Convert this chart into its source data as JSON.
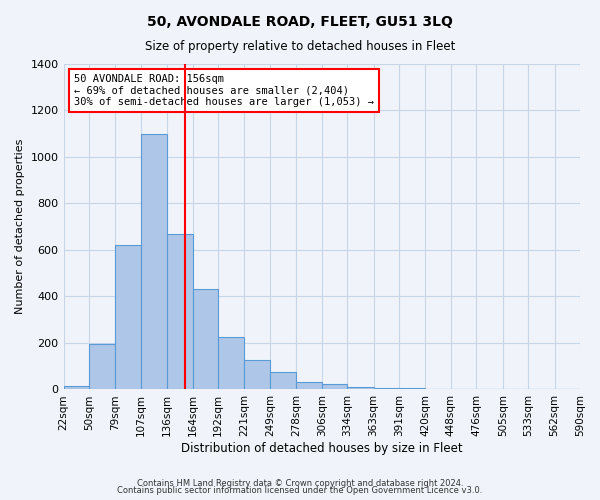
{
  "title": "50, AVONDALE ROAD, FLEET, GU51 3LQ",
  "subtitle": "Size of property relative to detached houses in Fleet",
  "xlabel": "Distribution of detached houses by size in Fleet",
  "ylabel": "Number of detached properties",
  "footnote1": "Contains HM Land Registry data © Crown copyright and database right 2024.",
  "footnote2": "Contains public sector information licensed under the Open Government Licence v3.0.",
  "bin_edges": [
    22,
    50,
    79,
    107,
    136,
    164,
    192,
    221,
    249,
    278,
    306,
    334,
    363,
    391,
    420,
    448,
    476,
    505,
    533,
    562,
    590
  ],
  "bin_labels": [
    "22sqm",
    "50sqm",
    "79sqm",
    "107sqm",
    "136sqm",
    "164sqm",
    "192sqm",
    "221sqm",
    "249sqm",
    "278sqm",
    "306sqm",
    "334sqm",
    "363sqm",
    "391sqm",
    "420sqm",
    "448sqm",
    "476sqm",
    "505sqm",
    "533sqm",
    "562sqm",
    "590sqm"
  ],
  "counts": [
    15,
    195,
    620,
    1100,
    670,
    430,
    225,
    125,
    75,
    30,
    25,
    10,
    5,
    5,
    0,
    0,
    0,
    0,
    0,
    0
  ],
  "bar_color": "#aec6e8",
  "bar_edge_color": "#5b9bd5",
  "vline_x": 156,
  "vline_color": "red",
  "ylim": [
    0,
    1400
  ],
  "yticks": [
    0,
    200,
    400,
    600,
    800,
    1000,
    1200,
    1400
  ],
  "annotation_text": "50 AVONDALE ROAD: 156sqm\n← 69% of detached houses are smaller (2,404)\n30% of semi-detached houses are larger (1,053) →",
  "annotation_box_color": "white",
  "annotation_box_edge_color": "red",
  "background_color": "#f0f4fa",
  "grid_color": "#c8d4e8"
}
